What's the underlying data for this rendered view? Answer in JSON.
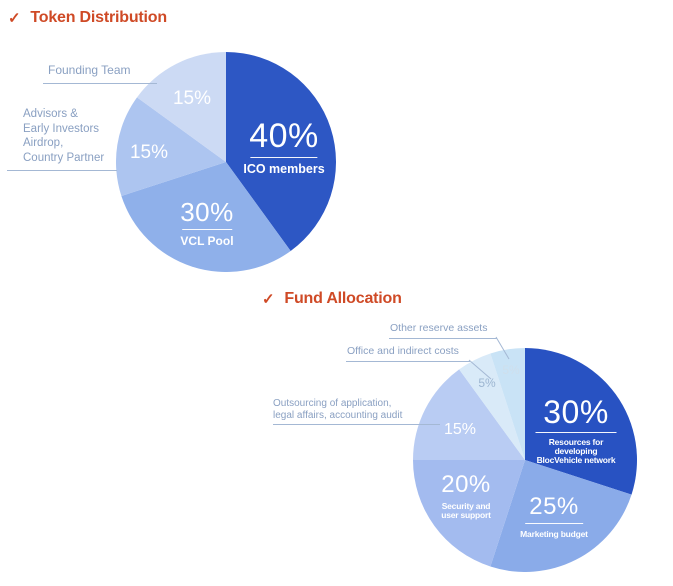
{
  "sections": {
    "token": {
      "check": "✓",
      "title": "Token Distribution"
    },
    "fund": {
      "check": "✓",
      "title": "Fund Allocation"
    }
  },
  "colors": {
    "section_title": "#cf4a26",
    "callout_text": "#8aa0c2",
    "leader_line": "#a4b8d4",
    "slice_text": "#ffffff"
  },
  "pie1_labels": {
    "s40": {
      "pct": "40%",
      "sub": "ICO members"
    },
    "s30": {
      "pct": "30%",
      "sub": "VCL Pool"
    },
    "s15_advisors": {
      "pct": "15%"
    },
    "s15_founding": {
      "pct": "15%"
    },
    "callout_founding": "Founding Team",
    "callout_advisors": "Advisors &\nEarly Investors\nAirdrop,\nCountry Partner"
  },
  "pie2_labels": {
    "s30": {
      "pct": "30%",
      "sub": "Resources for developing\nBlocVehicle network"
    },
    "s25": {
      "pct": "25%",
      "sub": "Marketing budget"
    },
    "s20": {
      "pct": "20%",
      "sub": "Security and\nuser support"
    },
    "s15": {
      "pct": "15%"
    },
    "s5_office": {
      "pct": "5%"
    },
    "s5_other": {
      "pct": "5%"
    },
    "callout_other": "Other reserve assets",
    "callout_office": "Office and indirect costs",
    "callout_outsourcing": "Outsourcing of application,\nlegal affairs, accounting audit"
  },
  "chart_data": [
    {
      "type": "pie",
      "title": "Token Distribution",
      "start_angle_deg": 0,
      "direction": "clockwise",
      "slices": [
        {
          "label": "ICO members",
          "pct": 40,
          "color": "#2d57c4"
        },
        {
          "label": "VCL Pool",
          "pct": 30,
          "color": "#8fb0ea"
        },
        {
          "label": "Advisors & Early Investors Airdrop, Country Partner",
          "pct": 15,
          "color": "#adc5f0"
        },
        {
          "label": "Founding Team",
          "pct": 15,
          "color": "#ccdaf4"
        }
      ]
    },
    {
      "type": "pie",
      "title": "Fund Allocation",
      "start_angle_deg": 0,
      "direction": "clockwise",
      "slices": [
        {
          "label": "Resources for developing BlocVehicle network",
          "pct": 30,
          "color": "#2852c2"
        },
        {
          "label": "Marketing budget",
          "pct": 25,
          "color": "#8aabe9"
        },
        {
          "label": "Security and user support",
          "pct": 20,
          "color": "#a3bbef"
        },
        {
          "label": "Outsourcing of application, legal affairs, accounting audit",
          "pct": 15,
          "color": "#b9ccf3"
        },
        {
          "label": "Office and indirect costs",
          "pct": 5,
          "color": "#d9eaf8"
        },
        {
          "label": "Other reserve assets",
          "pct": 5,
          "color": "#c9e3f6"
        }
      ]
    }
  ]
}
